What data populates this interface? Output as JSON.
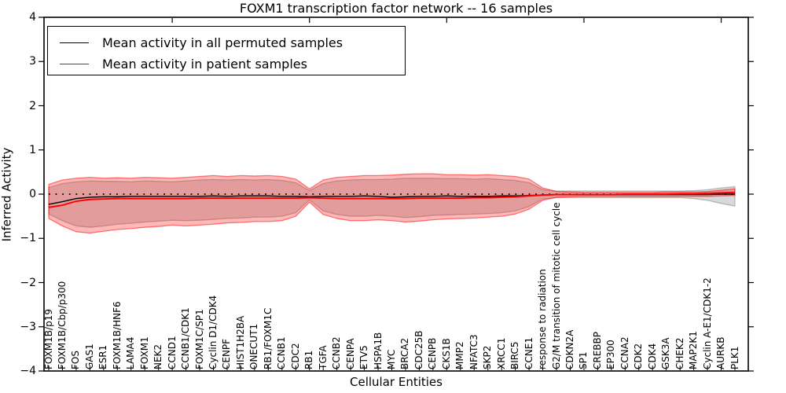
{
  "chart_data": {
    "type": "line",
    "title": "FOXM1 transcription factor network -- 16 samples",
    "xlabel": "Cellular Entities",
    "ylabel": "Inferred Activity",
    "ylim": [
      -4,
      4
    ],
    "ytick_values": [
      4,
      3,
      2,
      1,
      0,
      -1,
      -2,
      -3,
      -4
    ],
    "ytick_labels": [
      "4",
      "3",
      "2",
      "1",
      "0",
      "−1",
      "−2",
      "−3",
      "−4"
    ],
    "grid": false,
    "legend_position": "upper left",
    "zero_line": {
      "y": 0,
      "style": "dotted",
      "color": "#000000"
    },
    "categories": [
      "FOXM1B/p19",
      "FOXM1B/Cbp/p300",
      "FOS",
      "GAS1",
      "ESR1",
      "FOXM1B/HNF6",
      "LAMA4",
      "FOXM1",
      "NEK2",
      "CCND1",
      "CCNB1/CDK1",
      "FOXM1C/SP1",
      "Cyclin D1/CDK4",
      "CENPF",
      "HIST1H2BA",
      "ONECUT1",
      "RB1/FOXM1C",
      "CCNB1",
      "CDC2",
      "RB1",
      "TGFA",
      "CCNB2",
      "CENPA",
      "ETV5",
      "HSPA1B",
      "MYC",
      "BRCA2",
      "CDC25B",
      "CENPB",
      "CKS1B",
      "MMP2",
      "NFATC3",
      "SKP2",
      "XRCC1",
      "BIRC5",
      "CCNE1",
      "response to radiation",
      "G2/M transition of mitotic cell cycle",
      "CDKN2A",
      "SP1",
      "CREBBP",
      "EP300",
      "CCNA2",
      "CDK2",
      "CDK4",
      "GSK3A",
      "CHEK2",
      "MAP2K1",
      "Cyclin A-E1/CDK1-2",
      "AURKB",
      "PLK1"
    ],
    "series": [
      {
        "name": "Mean activity in all permuted samples",
        "color": "#000000",
        "values": [
          -0.23,
          -0.17,
          -0.1,
          -0.07,
          -0.06,
          -0.06,
          -0.05,
          -0.05,
          -0.05,
          -0.05,
          -0.05,
          -0.05,
          -0.04,
          -0.05,
          -0.04,
          -0.04,
          -0.04,
          -0.05,
          -0.05,
          -0.06,
          -0.05,
          -0.05,
          -0.05,
          -0.04,
          -0.05,
          -0.07,
          -0.06,
          -0.05,
          -0.05,
          -0.04,
          -0.05,
          -0.05,
          -0.05,
          -0.04,
          -0.04,
          -0.03,
          -0.02,
          -0.01,
          -0.01,
          -0.01,
          -0.01,
          -0.01,
          -0.01,
          -0.01,
          -0.01,
          -0.01,
          -0.01,
          -0.01,
          -0.01,
          0.0,
          0.0
        ]
      },
      {
        "name": "Mean activity in patient samples",
        "color": "#ff0000",
        "values": [
          -0.3,
          -0.25,
          -0.16,
          -0.12,
          -0.11,
          -0.1,
          -0.1,
          -0.1,
          -0.1,
          -0.1,
          -0.1,
          -0.09,
          -0.09,
          -0.09,
          -0.09,
          -0.09,
          -0.09,
          -0.09,
          -0.09,
          -0.08,
          -0.09,
          -0.1,
          -0.1,
          -0.1,
          -0.1,
          -0.1,
          -0.1,
          -0.09,
          -0.09,
          -0.09,
          -0.09,
          -0.08,
          -0.08,
          -0.07,
          -0.06,
          -0.04,
          -0.02,
          -0.01,
          -0.01,
          -0.01,
          -0.01,
          -0.01,
          0.0,
          0.0,
          0.0,
          0.0,
          0.01,
          0.01,
          0.02,
          0.03,
          0.04
        ]
      }
    ],
    "bands": [
      {
        "name": "permuted-samples-ci",
        "fill": "rgba(120,120,120,0.28)",
        "edge": "rgba(120,120,120,0.45)",
        "upper": [
          0.15,
          0.24,
          0.28,
          0.3,
          0.29,
          0.29,
          0.28,
          0.3,
          0.29,
          0.28,
          0.3,
          0.32,
          0.33,
          0.32,
          0.33,
          0.32,
          0.33,
          0.31,
          0.26,
          0.08,
          0.24,
          0.3,
          0.32,
          0.33,
          0.33,
          0.34,
          0.36,
          0.36,
          0.36,
          0.35,
          0.35,
          0.34,
          0.35,
          0.33,
          0.31,
          0.26,
          0.1,
          0.07,
          0.07,
          0.07,
          0.07,
          0.07,
          0.07,
          0.07,
          0.07,
          0.07,
          0.07,
          0.08,
          0.1,
          0.14,
          0.17
        ],
        "lower": [
          -0.45,
          -0.6,
          -0.72,
          -0.75,
          -0.72,
          -0.68,
          -0.66,
          -0.63,
          -0.61,
          -0.59,
          -0.6,
          -0.59,
          -0.57,
          -0.55,
          -0.54,
          -0.52,
          -0.52,
          -0.5,
          -0.42,
          -0.13,
          -0.38,
          -0.46,
          -0.5,
          -0.5,
          -0.48,
          -0.5,
          -0.53,
          -0.51,
          -0.48,
          -0.47,
          -0.46,
          -0.45,
          -0.44,
          -0.42,
          -0.38,
          -0.28,
          -0.11,
          -0.08,
          -0.08,
          -0.08,
          -0.08,
          -0.08,
          -0.08,
          -0.08,
          -0.08,
          -0.08,
          -0.08,
          -0.1,
          -0.14,
          -0.21,
          -0.27
        ]
      },
      {
        "name": "patient-samples-ci",
        "fill": "rgba(255,0,0,0.28)",
        "edge": "rgba(255,0,0,0.5)",
        "upper": [
          0.22,
          0.32,
          0.36,
          0.38,
          0.36,
          0.37,
          0.36,
          0.38,
          0.37,
          0.36,
          0.38,
          0.4,
          0.42,
          0.4,
          0.42,
          0.41,
          0.42,
          0.4,
          0.34,
          0.12,
          0.32,
          0.38,
          0.4,
          0.42,
          0.42,
          0.43,
          0.45,
          0.46,
          0.46,
          0.44,
          0.44,
          0.43,
          0.44,
          0.42,
          0.4,
          0.34,
          0.14,
          0.06,
          0.05,
          0.04,
          0.04,
          0.04,
          0.04,
          0.04,
          0.04,
          0.05,
          0.05,
          0.05,
          0.06,
          0.09,
          0.12
        ],
        "lower": [
          -0.55,
          -0.72,
          -0.85,
          -0.88,
          -0.84,
          -0.8,
          -0.78,
          -0.75,
          -0.73,
          -0.7,
          -0.72,
          -0.7,
          -0.68,
          -0.65,
          -0.64,
          -0.62,
          -0.62,
          -0.6,
          -0.5,
          -0.18,
          -0.46,
          -0.55,
          -0.6,
          -0.6,
          -0.58,
          -0.6,
          -0.63,
          -0.61,
          -0.58,
          -0.56,
          -0.55,
          -0.54,
          -0.52,
          -0.5,
          -0.45,
          -0.34,
          -0.14,
          -0.07,
          -0.06,
          -0.05,
          -0.05,
          -0.05,
          -0.05,
          -0.05,
          -0.05,
          -0.05,
          -0.05,
          -0.05,
          -0.05,
          -0.04,
          -0.03
        ]
      }
    ]
  }
}
